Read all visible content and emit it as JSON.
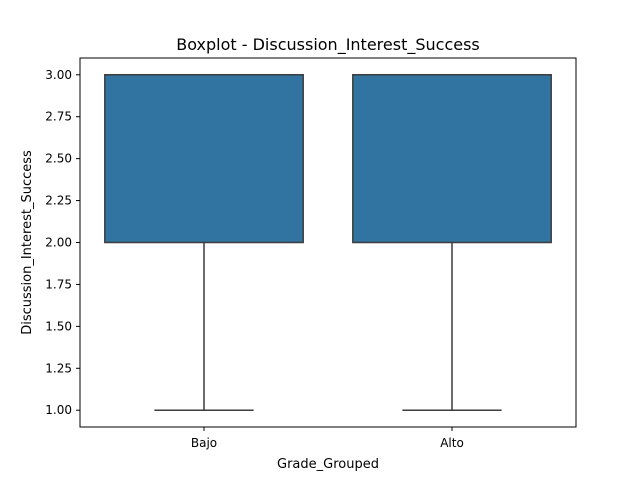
{
  "chart_data": {
    "type": "boxplot",
    "title": "Boxplot - Discussion_Interest_Success",
    "xlabel": "Grade_Grouped",
    "ylabel": "Discussion_Interest_Success",
    "categories": [
      "Bajo",
      "Alto"
    ],
    "ylim": [
      0.9,
      3.1
    ],
    "yticks": [
      "1.00",
      "1.25",
      "1.50",
      "1.75",
      "2.00",
      "2.25",
      "2.50",
      "2.75",
      "3.00"
    ],
    "boxes": [
      {
        "category": "Bajo",
        "whisker_low": 1.0,
        "q1": 2.0,
        "median": 3.0,
        "q3": 3.0,
        "whisker_high": 3.0
      },
      {
        "category": "Alto",
        "whisker_low": 1.0,
        "q1": 2.0,
        "median": 3.0,
        "q3": 3.0,
        "whisker_high": 3.0
      }
    ],
    "box_color": "#3274a1",
    "edge_color": "#3d3d3d",
    "grid": false,
    "legend": "none"
  }
}
